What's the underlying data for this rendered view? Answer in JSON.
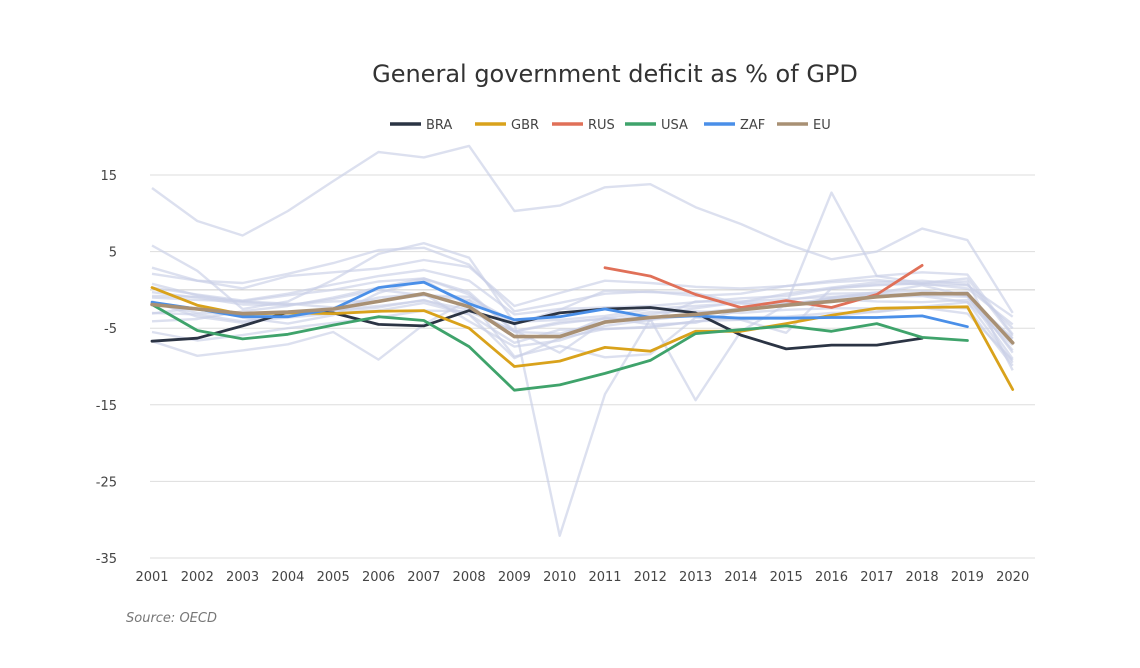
{
  "chart_data": {
    "type": "line",
    "title": "General government deficit as % of GPD",
    "source": "Source: OECD",
    "xlabel": "",
    "ylabel": "",
    "x": [
      "2001",
      "2002",
      "2003",
      "2004",
      "2005",
      "2006",
      "2007",
      "2008",
      "2009",
      "2010",
      "2011",
      "2012",
      "2013",
      "2014",
      "2015",
      "2016",
      "2017",
      "2018",
      "2019",
      "2020"
    ],
    "y_ticks": [
      "15",
      "5",
      "-5",
      "-15",
      "-25",
      "-35"
    ],
    "ylim": [
      -35,
      15
    ],
    "grid": true,
    "legend": "top-center",
    "series": [
      {
        "name": "BRA",
        "color": "#2b3444",
        "values": [
          -6.7,
          -6.3,
          -4.7,
          -2.9,
          -3.0,
          -4.5,
          -4.7,
          -2.7,
          -4.4,
          -3.0,
          -2.5,
          -2.3,
          -3.0,
          -5.9,
          -7.7,
          -7.2,
          -7.2,
          -6.3,
          null,
          null
        ]
      },
      {
        "name": "GBR",
        "color": "#d9a21b",
        "values": [
          0.3,
          -2.0,
          -3.2,
          -3.0,
          -3.1,
          -2.8,
          -2.7,
          -5.0,
          -10.0,
          -9.3,
          -7.5,
          -8.0,
          -5.4,
          -5.4,
          -4.4,
          -3.3,
          -2.4,
          -2.3,
          -2.2,
          -13.0
        ]
      },
      {
        "name": "RUS",
        "color": "#e07058",
        "values": [
          null,
          null,
          null,
          null,
          null,
          null,
          null,
          null,
          null,
          null,
          2.9,
          1.8,
          -0.6,
          -2.3,
          -1.4,
          -2.3,
          -0.6,
          3.2,
          null,
          null
        ]
      },
      {
        "name": "USA",
        "color": "#3fa36b",
        "values": [
          -1.9,
          -5.3,
          -6.4,
          -5.8,
          -4.6,
          -3.5,
          -4.0,
          -7.4,
          -13.1,
          -12.4,
          -10.9,
          -9.2,
          -5.7,
          -5.2,
          -4.7,
          -5.4,
          -4.4,
          -6.2,
          -6.6,
          null
        ]
      },
      {
        "name": "ZAF",
        "color": "#4a8fe8",
        "values": [
          -1.6,
          -2.5,
          -3.5,
          -3.5,
          -2.5,
          0.3,
          1.0,
          -1.8,
          -3.9,
          -3.5,
          -2.5,
          -3.6,
          -3.4,
          -3.7,
          -3.7,
          -3.6,
          -3.6,
          -3.4,
          -4.8,
          null
        ]
      },
      {
        "name": "EU",
        "color": "#a89074",
        "values": [
          -1.9,
          -2.5,
          -3.1,
          -2.9,
          -2.5,
          -1.5,
          -0.5,
          -2.2,
          -6.1,
          -6.1,
          -4.2,
          -3.6,
          -3.2,
          -2.6,
          -2.0,
          -1.5,
          -0.9,
          -0.5,
          -0.5,
          -6.9
        ]
      }
    ],
    "background_series": [
      {
        "values": [
          13.3,
          9.0,
          7.1,
          10.3,
          14.2,
          18.0,
          17.3,
          18.8,
          10.3,
          11.0,
          13.4,
          13.8,
          10.8,
          8.6,
          6.0,
          4.0,
          5.0,
          8.0,
          6.5,
          -3.0
        ]
      },
      {
        "values": [
          5.8,
          2.5,
          -2.5,
          -1.5,
          1.3,
          4.7,
          6.1,
          4.2,
          -4.3,
          -32.1,
          -13.6,
          -3.8,
          -14.4,
          -5.4,
          -1.9,
          12.7,
          1.8,
          0.9,
          1.5,
          -6.0
        ]
      },
      {
        "values": [
          2.9,
          1.2,
          0.9,
          2.1,
          3.5,
          5.2,
          5.5,
          3.3,
          -2.8,
          -1.7,
          -0.5,
          -0.2,
          -0.8,
          -0.5,
          0.5,
          1.2,
          1.8,
          2.3,
          2.0,
          -5.8
        ]
      },
      {
        "values": [
          -1.0,
          -1.3,
          -1.5,
          -1.8,
          -2.3,
          -1.0,
          -0.5,
          -4.1,
          -7.4,
          -6.6,
          -4.7,
          -3.9,
          -3.3,
          -2.5,
          -2.1,
          -1.0,
          -0.3,
          -0.1,
          -0.8,
          -7.9
        ]
      },
      {
        "values": [
          -3.0,
          -3.2,
          -4.1,
          -3.6,
          -3.1,
          -2.7,
          -1.7,
          -3.2,
          -8.9,
          -6.3,
          -5.1,
          -4.8,
          -4.1,
          -3.9,
          -3.6,
          -3.5,
          -2.8,
          -2.3,
          -3.1,
          -9.2
        ]
      },
      {
        "values": [
          -6.7,
          -8.6,
          -7.9,
          -7.1,
          -5.5,
          -9.1,
          -4.5,
          -1.3,
          -8.7,
          -7.3,
          -8.8,
          -8.4,
          -3.6,
          -3.9,
          -5.6,
          0.2,
          0.6,
          0.9,
          1.1,
          -10.5
        ]
      },
      {
        "values": [
          -1.5,
          -3.5,
          -4.3,
          -3.2,
          -2.6,
          -2.1,
          -1.4,
          -2.6,
          -5.4,
          -4.2,
          -3.8,
          -4.0,
          -1.5,
          -1.5,
          -1.2,
          -0.9,
          -0.6,
          -0.5,
          -0.3,
          -8.2
        ]
      },
      {
        "values": [
          0.8,
          -0.7,
          -1.6,
          -1.9,
          -1.5,
          -1.4,
          -0.7,
          -0.9,
          -4.2,
          -3.9,
          -3.4,
          -2.5,
          -2.1,
          -1.7,
          -1.7,
          -1.5,
          -0.9,
          -0.8,
          -1.6,
          -7.2
        ]
      },
      {
        "values": [
          2.1,
          1.2,
          0.2,
          1.8,
          2.3,
          2.8,
          3.9,
          3.0,
          -2.1,
          -0.4,
          1.2,
          0.9,
          0.4,
          0.2,
          0.5,
          1.0,
          1.3,
          0.7,
          0.6,
          -3.5
        ]
      },
      {
        "values": [
          -3.1,
          -2.3,
          -3.6,
          -4.4,
          -3.3,
          -0.4,
          1.3,
          -2.1,
          -6.0,
          -6.1,
          -3.6,
          -4.5,
          -4.3,
          -2.6,
          -1.4,
          -0.5,
          -0.4,
          0.6,
          -0.8,
          -9.0
        ]
      },
      {
        "values": [
          -5.5,
          -6.6,
          -5.9,
          -5.0,
          -4.3,
          -3.6,
          -2.7,
          -2.8,
          -5.4,
          -4.4,
          -3.7,
          -2.9,
          -2.8,
          -3.0,
          -2.6,
          -2.4,
          -2.4,
          -2.2,
          -1.6,
          -9.5
        ]
      },
      {
        "values": [
          0.3,
          -0.6,
          -1.4,
          -0.5,
          0.7,
          1.8,
          2.6,
          1.2,
          -3.2,
          -2.5,
          -2.3,
          -2.1,
          -1.6,
          -1.1,
          -0.8,
          0.2,
          0.7,
          0.8,
          0.2,
          -4.5
        ]
      },
      {
        "values": [
          -1.7,
          -3.0,
          -3.2,
          -3.3,
          -2.8,
          -2.3,
          -1.3,
          -3.2,
          -6.9,
          -5.2,
          -5.1,
          -4.9,
          -4.1,
          -3.6,
          -3.5,
          -3.0,
          -2.9,
          -2.2,
          -2.4,
          -9.9
        ]
      },
      {
        "values": [
          -0.8,
          -0.9,
          -1.5,
          -0.7,
          0.0,
          1.1,
          1.5,
          -0.3,
          -5.5,
          -5.7,
          -4.1,
          -3.8,
          -3.0,
          -2.4,
          -1.8,
          -1.2,
          -1.5,
          -1.6,
          -1.3,
          -6.4
        ]
      },
      {
        "values": [
          -4.1,
          -3.8,
          -2.8,
          -2.1,
          -1.0,
          0.3,
          1.5,
          -0.6,
          -5.3,
          -8.2,
          -4.1,
          -3.2,
          -2.4,
          -1.6,
          -0.5,
          0.3,
          1.0,
          1.2,
          0.7,
          -5.0
        ]
      },
      {
        "values": [
          -0.3,
          -1.0,
          -1.9,
          -2.0,
          -1.2,
          0.0,
          -0.7,
          -1.3,
          -4.5,
          -2.6,
          -0.1,
          -0.3,
          -0.4,
          -1.8,
          -2.1,
          -1.1,
          -0.6,
          -0.7,
          -0.9,
          -6.3
        ]
      }
    ]
  }
}
